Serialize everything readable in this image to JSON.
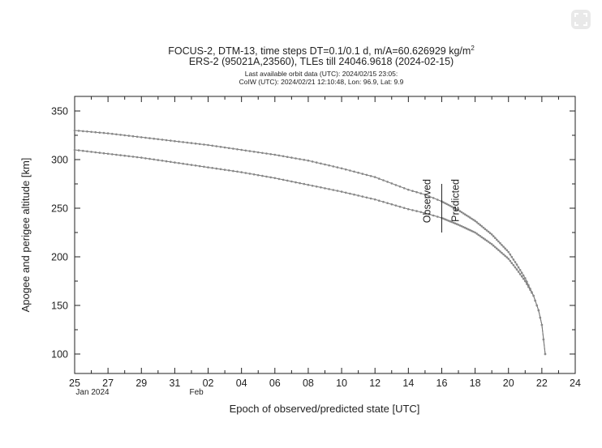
{
  "ui": {
    "expand_icon": "expand-icon"
  },
  "chart_data": {
    "type": "line",
    "title": {
      "line1": "FOCUS-2, DTM-13, time steps DT=0.1/0.1 d, m/A=60.626929 kg/m",
      "line1_sup": "2",
      "line2": "ERS-2 (95021A,23560), TLEs till 24046.9618 (2024-02-15)",
      "line3": "Last available orbit data (UTC): 2024/02/15 23:05:",
      "line4": "CoIW (UTC): 2024/02/21 12:10:48, Lon:  96.9, Lat:   9.9"
    },
    "xlabel": "Epoch of observed/predicted state [UTC]",
    "ylabel": "Apogee and perigee altitude [km]",
    "x_unit": "days since 2024-01-25 00:00 UTC (x axis spans 25 Jan to 24 Feb 2024)",
    "xlim": [
      0,
      30
    ],
    "ylim": [
      80,
      365
    ],
    "x_ticks": [
      {
        "x": 0,
        "label": "25"
      },
      {
        "x": 2,
        "label": "27"
      },
      {
        "x": 4,
        "label": "29"
      },
      {
        "x": 6,
        "label": "31"
      },
      {
        "x": 8,
        "label": "02"
      },
      {
        "x": 10,
        "label": "04"
      },
      {
        "x": 12,
        "label": "06"
      },
      {
        "x": 14,
        "label": "08"
      },
      {
        "x": 16,
        "label": "10"
      },
      {
        "x": 18,
        "label": "12"
      },
      {
        "x": 20,
        "label": "14"
      },
      {
        "x": 22,
        "label": "16"
      },
      {
        "x": 24,
        "label": "18"
      },
      {
        "x": 26,
        "label": "20"
      },
      {
        "x": 28,
        "label": "22"
      },
      {
        "x": 30,
        "label": "24"
      }
    ],
    "month_labels": [
      {
        "x": 0,
        "label": "Jan 2024"
      },
      {
        "x": 7.3,
        "label": "Feb"
      }
    ],
    "y_ticks": [
      100,
      150,
      200,
      250,
      300,
      350
    ],
    "grid": false,
    "markers": [
      {
        "x": 22.0,
        "y_from": 225,
        "y_to": 275,
        "label_left": "Observed",
        "label_right": "Predicted"
      }
    ],
    "series": [
      {
        "name": "",
        "x": [
          0,
          2,
          4,
          6,
          8,
          10,
          12,
          14,
          16,
          18,
          20,
          21,
          22,
          23,
          24,
          25,
          26,
          26.5,
          27,
          27.5,
          27.8,
          28.0,
          28.2
        ],
        "y": [
          330,
          327,
          323,
          319,
          315,
          310,
          305,
          299,
          291,
          282,
          269,
          264,
          257,
          248,
          237,
          223,
          205,
          192,
          178,
          160,
          145,
          130,
          100
        ]
      },
      {
        "name": "",
        "x": [
          0,
          2,
          4,
          6,
          8,
          10,
          12,
          14,
          16,
          18,
          20,
          21,
          22,
          23,
          24,
          25,
          26,
          26.5,
          27,
          27.5,
          27.8,
          28.0,
          28.2
        ],
        "y": [
          310,
          306,
          302,
          297,
          292,
          287,
          281,
          274,
          267,
          259,
          249,
          245,
          240,
          233,
          225,
          213,
          198,
          187,
          175,
          160,
          145,
          130,
          100
        ]
      }
    ]
  }
}
